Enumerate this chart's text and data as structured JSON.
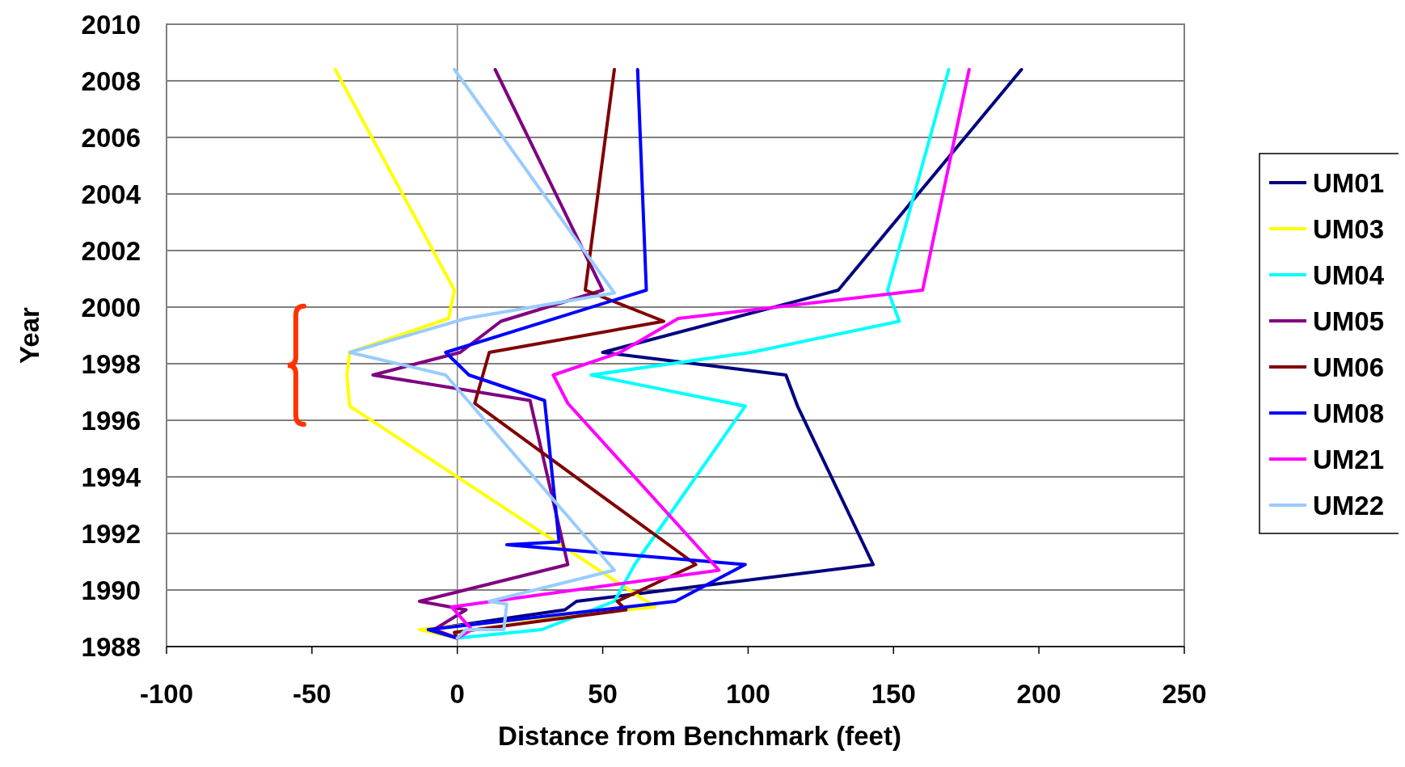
{
  "chart_data": {
    "type": "line",
    "xlabel": "Distance from Benchmark (feet)",
    "ylabel": "Year",
    "xlim": [
      -100,
      250
    ],
    "xticks": [
      -100,
      -50,
      0,
      50,
      100,
      150,
      200,
      250
    ],
    "ylim": [
      1988,
      2010
    ],
    "yticks": [
      1988,
      1990,
      1992,
      1994,
      1996,
      1998,
      2000,
      2002,
      2004,
      2006,
      2008,
      2010
    ],
    "grid": "y",
    "legend": "right",
    "marker": "none",
    "line_style": "solid",
    "series": [
      {
        "name": "UM01",
        "color": "#000080",
        "x": [
          194,
          131,
          50,
          113,
          117,
          143,
          41,
          37,
          -10,
          0
        ],
        "values": [
          2008.4,
          2000.6,
          1998.4,
          1997.6,
          1996.5,
          1990.9,
          1989.6,
          1989.3,
          1988.6,
          1988.3
        ]
      },
      {
        "name": "UM03",
        "color": "#ffff00",
        "x": [
          -42,
          -1,
          -3,
          -37,
          -38,
          -37,
          68,
          -13,
          0
        ],
        "values": [
          2008.4,
          2000.6,
          1999.6,
          1998.4,
          1997.6,
          1996.5,
          1989.4,
          1988.6,
          1988.3
        ]
      },
      {
        "name": "UM04",
        "color": "#00ffff",
        "x": [
          169,
          148,
          152,
          101,
          46,
          99,
          61,
          54,
          29,
          0
        ],
        "values": [
          2008.4,
          2000.6,
          1999.5,
          1998.4,
          1997.6,
          1996.5,
          1990.9,
          1989.6,
          1988.6,
          1988.3
        ]
      },
      {
        "name": "UM05",
        "color": "#800080",
        "x": [
          13,
          50,
          15,
          1,
          -29,
          25,
          38,
          -13,
          3,
          -8,
          0
        ],
        "values": [
          2008.4,
          2000.6,
          1999.5,
          1998.4,
          1997.6,
          1996.7,
          1990.9,
          1989.6,
          1989.3,
          1988.6,
          1988.3
        ]
      },
      {
        "name": "UM06",
        "color": "#800000",
        "x": [
          54,
          44,
          71,
          11,
          6,
          82,
          55,
          58,
          -1,
          0
        ],
        "values": [
          2008.4,
          2000.6,
          1999.5,
          1998.4,
          1996.6,
          1990.9,
          1989.6,
          1989.3,
          1988.5,
          1988.3
        ]
      },
      {
        "name": "UM08",
        "color": "#0000ff",
        "x": [
          62,
          65,
          -4,
          4,
          30,
          35,
          17,
          99,
          75,
          -10,
          0
        ],
        "values": [
          2008.4,
          2000.6,
          1998.4,
          1997.6,
          1996.7,
          1991.7,
          1991.6,
          1990.9,
          1989.6,
          1988.6,
          1988.3
        ]
      },
      {
        "name": "UM21",
        "color": "#ff00ff",
        "x": [
          176,
          160,
          76,
          56,
          33,
          38,
          90,
          -2,
          5,
          0
        ],
        "values": [
          2008.4,
          2000.6,
          1999.6,
          1998.4,
          1997.6,
          1996.6,
          1990.7,
          1989.4,
          1988.6,
          1988.3
        ]
      },
      {
        "name": "UM22",
        "color": "#99ccff",
        "x": [
          -1,
          54,
          3,
          -37,
          -4,
          54,
          11,
          17,
          16,
          3,
          0
        ],
        "values": [
          2008.4,
          2000.5,
          1999.6,
          1998.4,
          1997.6,
          1990.7,
          1989.6,
          1989.5,
          1988.6,
          1988.6,
          1988.3
        ]
      }
    ]
  }
}
